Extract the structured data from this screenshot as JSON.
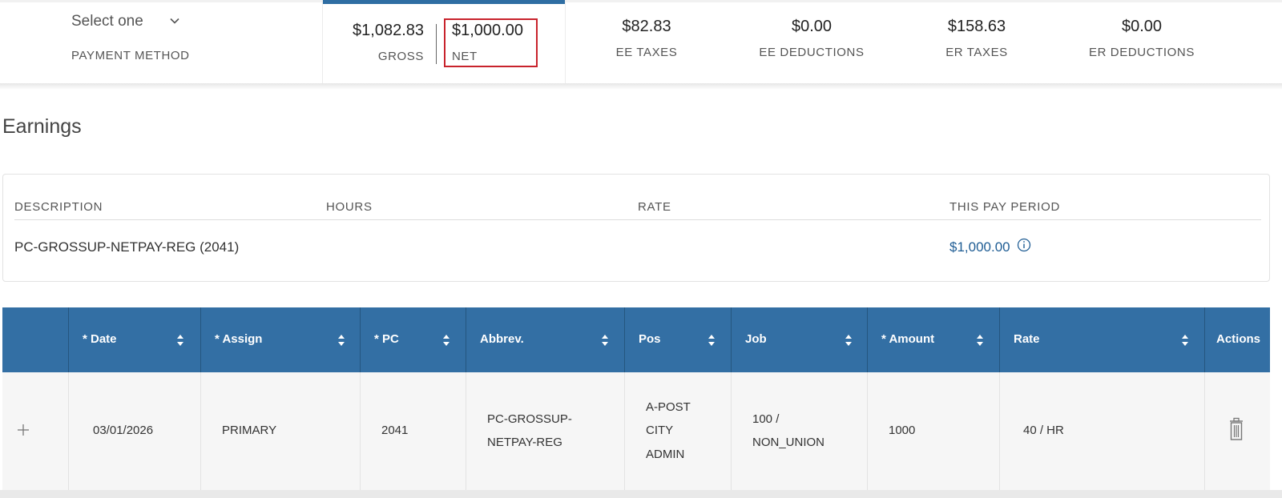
{
  "summary": {
    "payment_method_value": "Select one",
    "payment_method_label": "PAYMENT METHOD",
    "gross_value": "$1,082.83",
    "gross_label": "GROSS",
    "net_value": "$1,000.00",
    "net_label": "NET",
    "metrics": [
      {
        "value": "$82.83",
        "label": "EE TAXES"
      },
      {
        "value": "$0.00",
        "label": "EE DEDUCTIONS"
      },
      {
        "value": "$158.63",
        "label": "ER TAXES"
      },
      {
        "value": "$0.00",
        "label": "ER DEDUCTIONS"
      }
    ]
  },
  "earnings": {
    "title": "Earnings",
    "headers": [
      "DESCRIPTION",
      "HOURS",
      "RATE",
      "THIS PAY PERIOD"
    ],
    "row": {
      "description": "PC-GROSSUP-NETPAY-REG (2041)",
      "hours": "",
      "rate": "",
      "this_pay_period": "$1,000.00"
    }
  },
  "grid": {
    "headers": [
      "",
      "* Date",
      "* Assign",
      "* PC",
      "Abbrev.",
      "Pos",
      "Job",
      "* Amount",
      "Rate",
      "Actions"
    ],
    "row": {
      "add": "+",
      "date": "03/01/2026",
      "assign": "PRIMARY",
      "pc": "2041",
      "abbrev": [
        "PC-GROSSUP-",
        "NETPAY-REG"
      ],
      "pos": [
        "A-POST",
        "CITY",
        "ADMIN"
      ],
      "job": [
        "100 /",
        "NON_UNION"
      ],
      "amount": "1000",
      "rate": "40 / HR"
    }
  },
  "colors": {
    "accent": "#2f6ea3",
    "grid_header": "#336fa4",
    "highlight_box": "#c8232c",
    "link": "#1f5d94"
  },
  "icons": [
    "chevron-down-icon",
    "info-icon",
    "sort-icon",
    "plus-icon",
    "trash-icon"
  ]
}
